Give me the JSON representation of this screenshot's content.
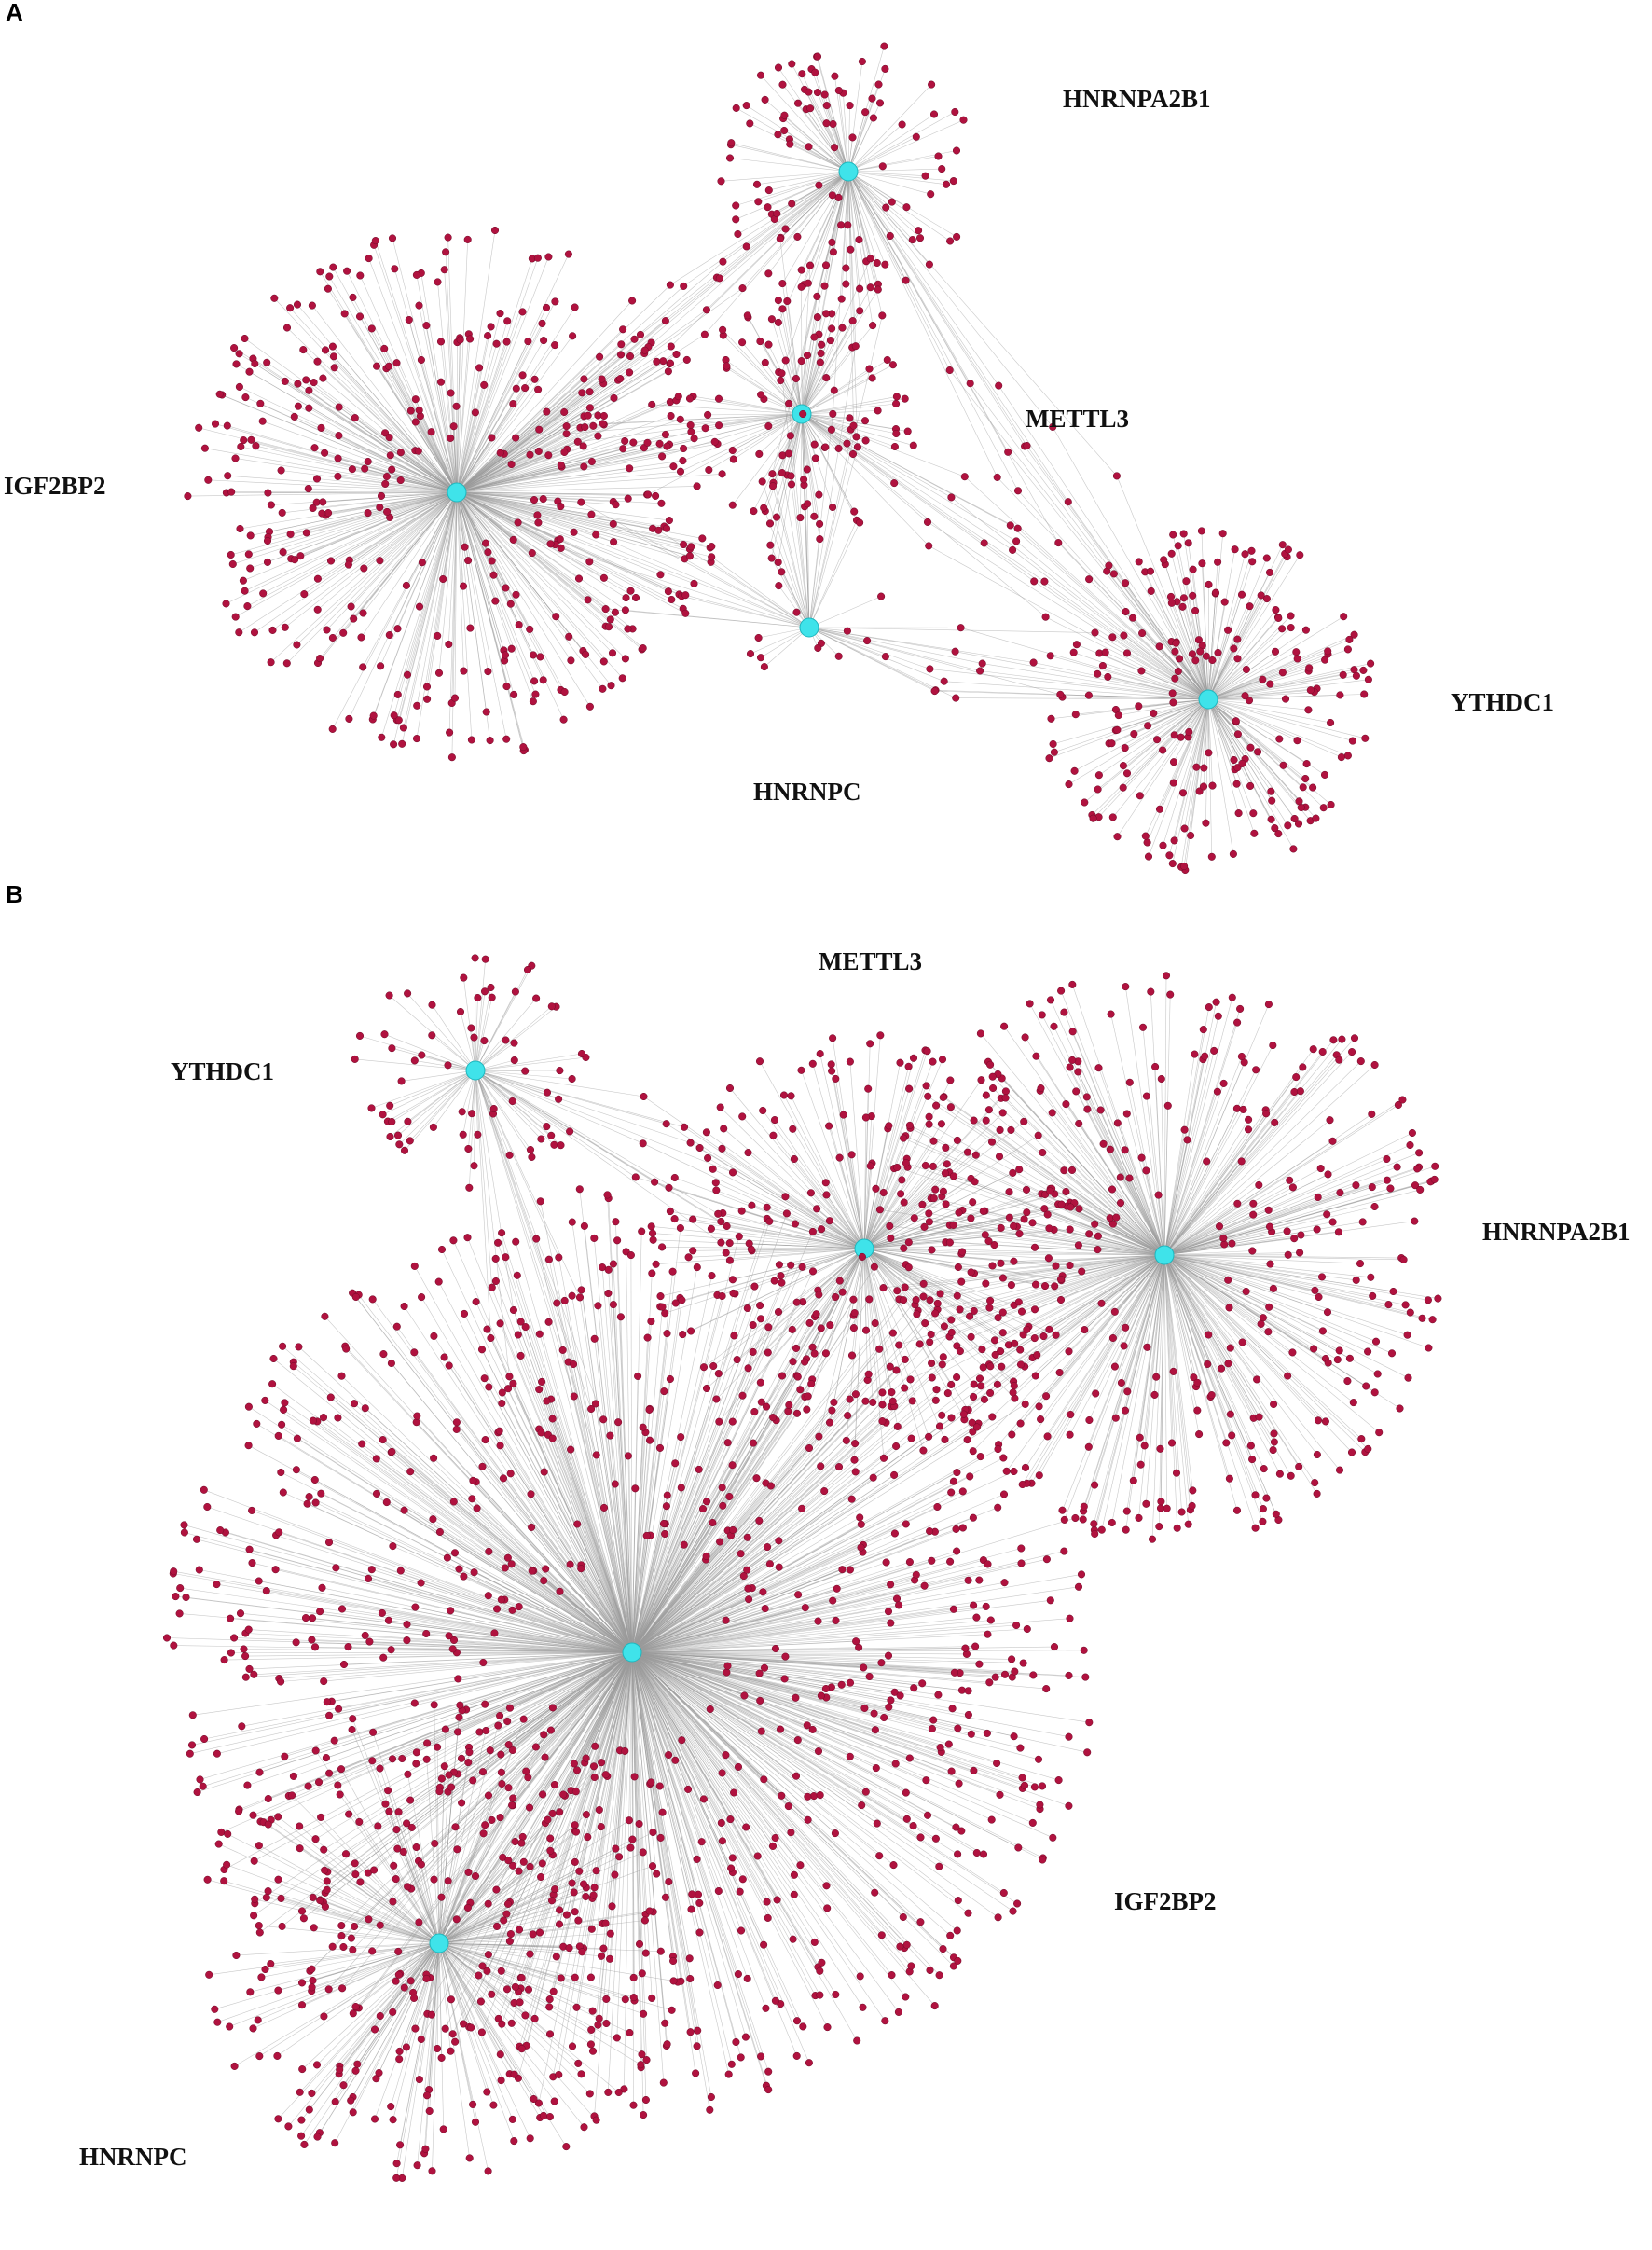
{
  "panels": [
    {
      "label": "A",
      "hubs": [
        {
          "label": "HNRNPA2B1"
        },
        {
          "label": "METTL3"
        },
        {
          "label": "IGF2BP2"
        },
        {
          "label": "HNRNPC"
        },
        {
          "label": "YTHDC1"
        }
      ]
    },
    {
      "label": "B",
      "hubs": [
        {
          "label": "YTHDC1"
        },
        {
          "label": "METTL3"
        },
        {
          "label": "HNRNPA2B1"
        },
        {
          "label": "IGF2BP2"
        },
        {
          "label": "HNRNPC"
        }
      ]
    }
  ]
}
